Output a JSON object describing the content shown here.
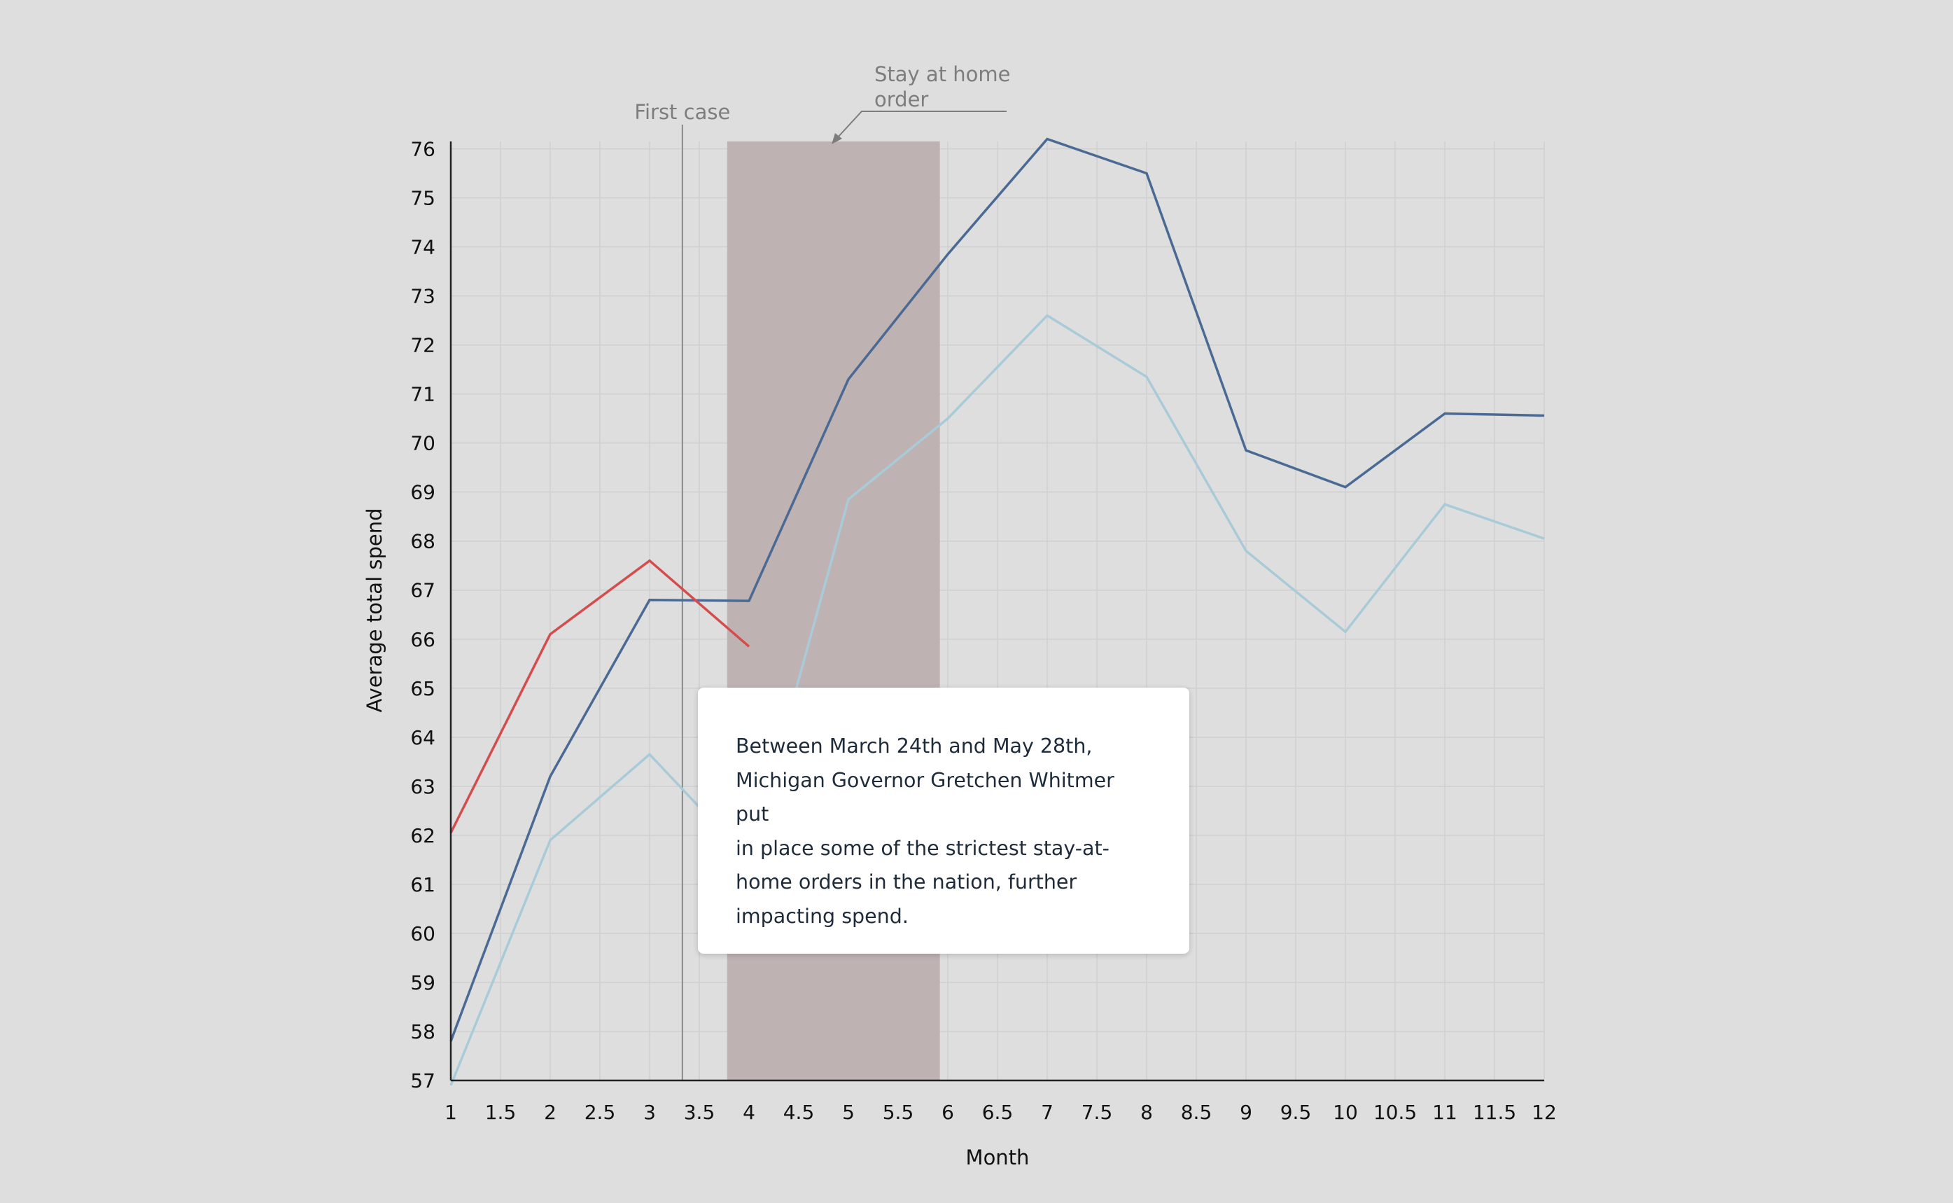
{
  "chart_data": {
    "type": "line",
    "title": "",
    "xlabel": "Month",
    "ylabel": "Average total spend",
    "xlim": [
      1,
      12
    ],
    "ylim": [
      57,
      76
    ],
    "x_ticks": [
      1,
      1.5,
      2,
      2.5,
      3,
      3.5,
      4,
      4.5,
      5,
      5.5,
      6,
      6.5,
      7,
      7.5,
      8,
      8.5,
      9,
      9.5,
      10,
      10.5,
      11,
      11.5,
      12
    ],
    "y_ticks": [
      57,
      58,
      59,
      60,
      61,
      62,
      63,
      64,
      65,
      66,
      67,
      68,
      69,
      70,
      71,
      72,
      73,
      74,
      75,
      76
    ],
    "grid": true,
    "legend": "none",
    "series": [
      {
        "color": "#a9cbd8",
        "x": [
          1,
          2,
          3,
          4,
          5,
          6,
          7,
          8,
          9,
          10,
          11,
          12
        ],
        "values": [
          56.9,
          61.9,
          63.65,
          61.5,
          68.85,
          70.5,
          72.6,
          71.35,
          67.8,
          66.15,
          68.75,
          68.05
        ]
      },
      {
        "color": "#4a6a94",
        "x": [
          1,
          2,
          3,
          4,
          5,
          6,
          7,
          8,
          9,
          10,
          11,
          12
        ],
        "values": [
          57.8,
          63.2,
          66.8,
          66.78,
          71.3,
          73.85,
          76.2,
          75.5,
          69.85,
          69.1,
          70.6,
          70.56
        ]
      },
      {
        "color": "#d44c4c",
        "x": [
          1,
          2,
          3,
          4
        ],
        "values": [
          62.05,
          66.1,
          67.6,
          65.85
        ]
      }
    ],
    "annotations": {
      "first_case": {
        "label": "First case",
        "x": 3.33
      },
      "stay_at_home": {
        "label_line1": "Stay at home",
        "label_line2": "order",
        "x_start": 3.78,
        "x_end": 5.92,
        "color": "#bfb2b2"
      }
    },
    "tooltip_text": "Between March 24th and May 28th, Michigan Governor Gretchen Whitmer put in place some of the strictest stay-at-home orders in the nation, further impacting spend."
  },
  "tooltip": {
    "lines": [
      "Between March 24th and May 28th,",
      "Michigan Governor Gretchen Whitmer put",
      "in place some of the strictest stay-at-",
      "home orders in the nation, further",
      "impacting spend."
    ]
  }
}
